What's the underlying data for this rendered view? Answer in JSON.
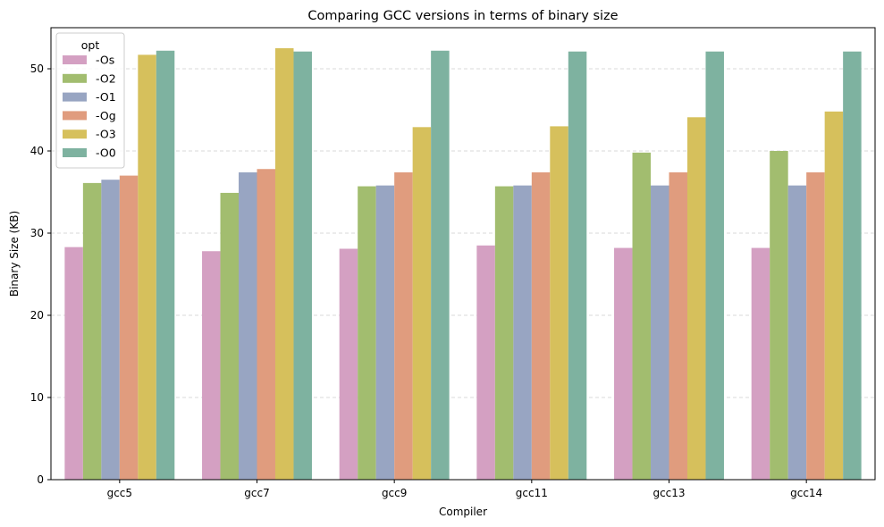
{
  "chart_data": {
    "type": "bar",
    "title": "Comparing GCC versions in terms of binary size",
    "xlabel": "Compiler",
    "ylabel": "Binary Size (KB)",
    "ylim": [
      0,
      55
    ],
    "yticks": [
      0,
      10,
      20,
      30,
      40,
      50
    ],
    "grid": "y-dashed",
    "legend": {
      "title": "opt",
      "placement": "top-left"
    },
    "categories": [
      "gcc5",
      "gcc7",
      "gcc9",
      "gcc11",
      "gcc13",
      "gcc14"
    ],
    "series": [
      {
        "name": "-Os",
        "color": "#d4a0c2",
        "values": [
          28.3,
          27.8,
          28.1,
          28.5,
          28.2,
          28.2
        ]
      },
      {
        "name": "-O2",
        "color": "#a2bd6f",
        "values": [
          36.1,
          34.9,
          35.7,
          35.7,
          39.8,
          40.0
        ]
      },
      {
        "name": "-O1",
        "color": "#98a5c2",
        "values": [
          36.5,
          37.4,
          35.8,
          35.8,
          35.8,
          35.8
        ]
      },
      {
        "name": "-Og",
        "color": "#e09c7e",
        "values": [
          37.0,
          37.8,
          37.4,
          37.4,
          37.4,
          37.4
        ]
      },
      {
        "name": "-O3",
        "color": "#d6c05c",
        "values": [
          51.7,
          52.5,
          42.9,
          43.0,
          44.1,
          44.8
        ]
      },
      {
        "name": "-O0",
        "color": "#7eb2a0",
        "values": [
          52.2,
          52.1,
          52.2,
          52.1,
          52.1,
          52.1
        ]
      }
    ]
  }
}
